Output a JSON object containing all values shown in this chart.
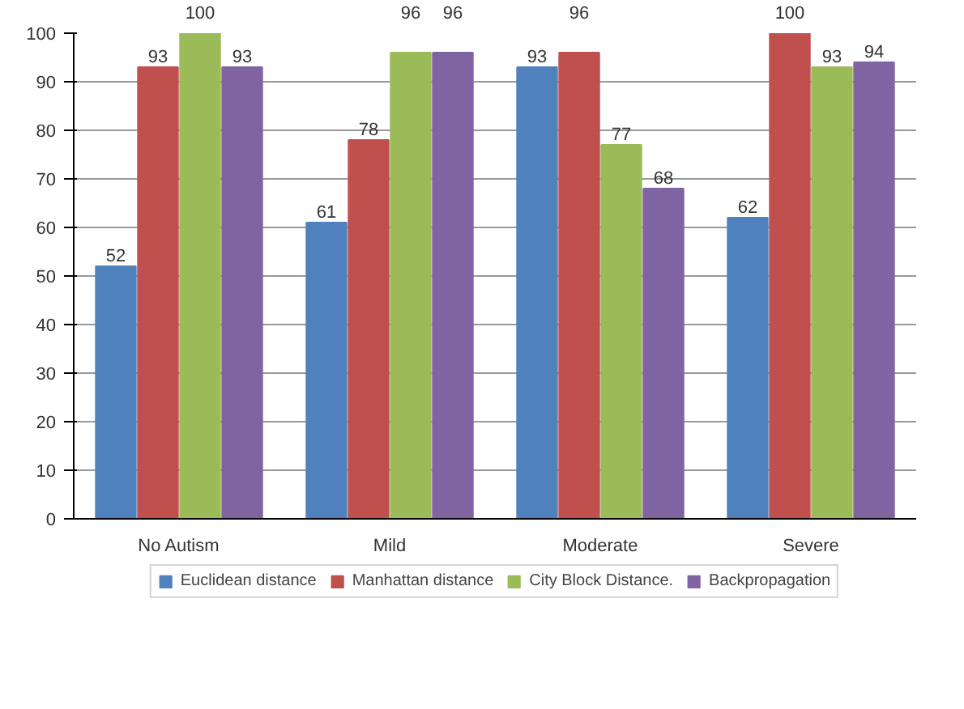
{
  "chart_data": {
    "type": "bar",
    "categories": [
      "No Autism",
      "Mild",
      "Moderate",
      "Severe"
    ],
    "series": [
      {
        "name": "Euclidean distance",
        "color": "#4f81bd",
        "values": [
          52,
          61,
          93,
          62
        ]
      },
      {
        "name": "Manhattan distance",
        "color": "#c0504d",
        "values": [
          93,
          78,
          96,
          100
        ]
      },
      {
        "name": "City Block Distance.",
        "color": "#9bbb59",
        "values": [
          100,
          96,
          77,
          93
        ]
      },
      {
        "name": "Backpropagation",
        "color": "#8064a2",
        "values": [
          93,
          96,
          68,
          94
        ]
      }
    ],
    "ylim": [
      0,
      100
    ],
    "yticks": [
      0,
      10,
      20,
      30,
      40,
      50,
      60,
      70,
      80,
      90,
      100
    ],
    "grid": "y",
    "legend": "bottom",
    "data_labels": true
  }
}
